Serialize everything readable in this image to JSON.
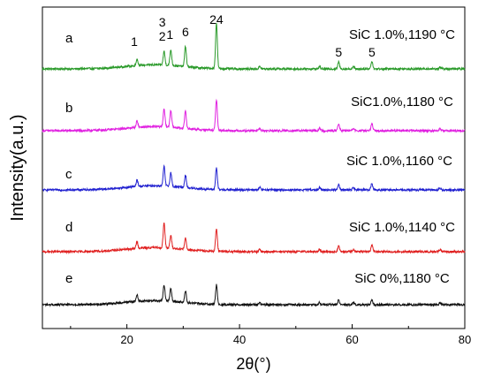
{
  "chart_data": {
    "type": "line",
    "xlabel": "2θ(°)",
    "ylabel": "Intensity(a.u.)",
    "xlim": [
      5,
      80
    ],
    "xticks": [
      20,
      40,
      60,
      80
    ],
    "grid": false,
    "legend": "none",
    "series": [
      {
        "name": "SiC 1.0%,1190 °C",
        "sample_label": "a",
        "color": "#2a9a2a",
        "baseline_offset": 4,
        "peaks": [
          [
            21.8,
            0.28
          ],
          [
            26.6,
            0.6
          ],
          [
            27.8,
            0.68
          ],
          [
            30.4,
            0.88
          ],
          [
            35.9,
            2.0
          ],
          [
            43.6,
            0.1
          ],
          [
            54.2,
            0.1
          ],
          [
            57.6,
            0.3
          ],
          [
            60.2,
            0.1
          ],
          [
            63.5,
            0.33
          ],
          [
            75.6,
            0.08
          ]
        ]
      },
      {
        "name": "SiC1.0%,1180 °C",
        "sample_label": "b",
        "color": "#e020e0",
        "baseline_offset": 3,
        "peaks": [
          [
            21.8,
            0.28
          ],
          [
            26.6,
            0.8
          ],
          [
            27.8,
            0.75
          ],
          [
            30.4,
            0.75
          ],
          [
            35.9,
            1.35
          ],
          [
            43.6,
            0.1
          ],
          [
            54.2,
            0.1
          ],
          [
            57.6,
            0.3
          ],
          [
            60.2,
            0.1
          ],
          [
            63.5,
            0.3
          ],
          [
            75.6,
            0.08
          ]
        ]
      },
      {
        "name": "SiC 1.0%,1160 °C",
        "sample_label": "c",
        "color": "#2020d0",
        "baseline_offset": 2,
        "peaks": [
          [
            21.8,
            0.28
          ],
          [
            26.6,
            0.85
          ],
          [
            27.8,
            0.6
          ],
          [
            30.4,
            0.55
          ],
          [
            35.9,
            0.95
          ],
          [
            43.6,
            0.1
          ],
          [
            54.2,
            0.1
          ],
          [
            57.6,
            0.25
          ],
          [
            60.2,
            0.1
          ],
          [
            63.5,
            0.28
          ],
          [
            75.6,
            0.08
          ]
        ]
      },
      {
        "name": "SiC 1.0%,1140 °C",
        "sample_label": "d",
        "color": "#e02020",
        "baseline_offset": 1,
        "peaks": [
          [
            21.8,
            0.28
          ],
          [
            26.6,
            1.1
          ],
          [
            27.8,
            0.55
          ],
          [
            30.4,
            0.5
          ],
          [
            35.9,
            1.0
          ],
          [
            43.6,
            0.1
          ],
          [
            54.2,
            0.1
          ],
          [
            57.6,
            0.25
          ],
          [
            60.2,
            0.1
          ],
          [
            63.5,
            0.3
          ],
          [
            75.6,
            0.08
          ]
        ]
      },
      {
        "name": "SiC 0%,1180 °C",
        "sample_label": "e",
        "color": "#101010",
        "baseline_offset": 0,
        "peaks": [
          [
            21.8,
            0.28
          ],
          [
            26.6,
            0.7
          ],
          [
            27.8,
            0.55
          ],
          [
            30.4,
            0.5
          ],
          [
            35.9,
            0.85
          ],
          [
            43.6,
            0.1
          ],
          [
            54.2,
            0.1
          ],
          [
            57.6,
            0.2
          ],
          [
            60.2,
            0.1
          ],
          [
            63.5,
            0.2
          ],
          [
            75.6,
            0.08
          ]
        ]
      }
    ],
    "peak_annotations": [
      {
        "label": "1",
        "x": 21.8
      },
      {
        "label": "3",
        "x": 26.6
      },
      {
        "label": "2",
        "x": 26.6
      },
      {
        "label": "1",
        "x": 27.8
      },
      {
        "label": "6",
        "x": 30.4
      },
      {
        "label": "24",
        "x": 35.9
      },
      {
        "label": "5",
        "x": 57.6
      },
      {
        "label": "5",
        "x": 63.5
      }
    ]
  }
}
